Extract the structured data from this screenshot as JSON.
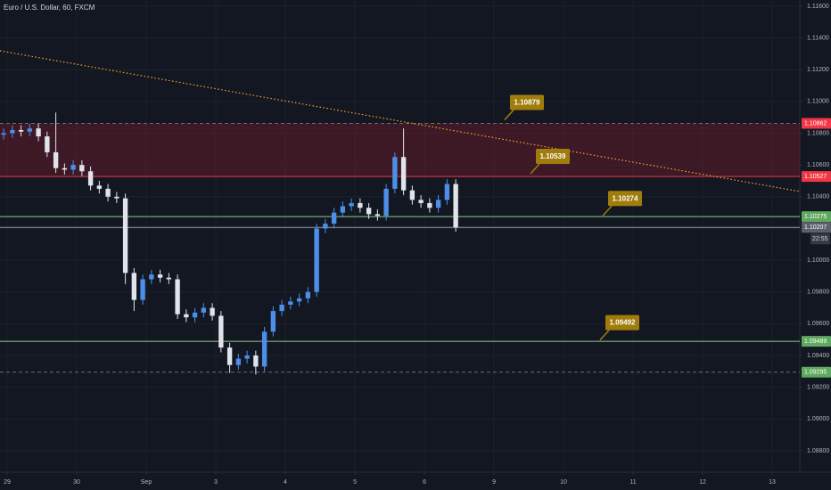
{
  "chart_data": {
    "type": "candlestick",
    "title": "Euro / U.S. Dollar, 60, FXCM",
    "x": [
      -0.05,
      0.075,
      0.2,
      0.325,
      0.45,
      0.575,
      0.7,
      0.825,
      0.95,
      1.075,
      1.2,
      1.325,
      1.45,
      1.575,
      1.7,
      1.825,
      1.95,
      2.075,
      2.2,
      2.325,
      2.45,
      2.575,
      2.7,
      2.825,
      2.95,
      3.075,
      3.2,
      3.325,
      3.45,
      3.575,
      3.7,
      3.825,
      3.95,
      4.075,
      4.2,
      4.325,
      4.45,
      4.575,
      4.7,
      4.825,
      4.95,
      5.075,
      5.2,
      5.325,
      5.45,
      5.575,
      5.7,
      5.825,
      5.95,
      6.075,
      6.2,
      6.325,
      6.45
    ],
    "open": [
      1.1079,
      1.108,
      1.1082,
      1.1081,
      1.1083,
      1.1078,
      1.1068,
      1.1058,
      1.1057,
      1.106,
      1.1056,
      1.1047,
      1.1045,
      1.104,
      1.1039,
      1.0992,
      1.0975,
      1.0988,
      1.0991,
      1.0989,
      1.0988,
      1.0966,
      1.0964,
      1.0967,
      1.097,
      1.0965,
      1.0945,
      1.0934,
      1.0938,
      1.094,
      1.0933,
      1.0955,
      1.0968,
      1.0972,
      1.0974,
      1.0976,
      1.098,
      1.102,
      1.1023,
      1.103,
      1.1034,
      1.1036,
      1.1033,
      1.1029,
      1.1028,
      1.1045,
      1.1065,
      1.1044,
      1.1038,
      1.1036,
      1.1033,
      1.1038,
      1.1048
    ],
    "high": [
      1.1083,
      1.1085,
      1.1085,
      1.1086,
      1.1086,
      1.1081,
      1.1093,
      1.1061,
      1.1063,
      1.1063,
      1.1059,
      1.105,
      1.1048,
      1.1043,
      1.1042,
      1.0995,
      1.0991,
      1.0994,
      1.0994,
      1.0992,
      1.0991,
      1.0969,
      1.097,
      1.0973,
      1.0973,
      1.0968,
      1.0948,
      1.0941,
      1.0943,
      1.0943,
      1.0958,
      1.0971,
      1.0975,
      1.0977,
      1.0979,
      1.0983,
      1.1023,
      1.1026,
      1.1033,
      1.1037,
      1.1039,
      1.1039,
      1.1036,
      1.1032,
      1.1048,
      1.1068,
      1.1083,
      1.1047,
      1.1041,
      1.1039,
      1.1041,
      1.1051,
      1.1051
    ],
    "low": [
      1.1076,
      1.1077,
      1.1078,
      1.1078,
      1.1075,
      1.1065,
      1.1055,
      1.1054,
      1.1054,
      1.1053,
      1.1044,
      1.1042,
      1.1037,
      1.1036,
      1.0985,
      1.0968,
      1.0972,
      1.0985,
      1.0986,
      1.0985,
      1.0963,
      1.0961,
      1.0961,
      1.0964,
      1.0962,
      1.0942,
      1.0929,
      1.0931,
      1.0935,
      1.0928,
      1.093,
      1.0952,
      1.0965,
      1.0969,
      1.0971,
      1.0973,
      1.0977,
      1.1017,
      1.102,
      1.1027,
      1.1031,
      1.103,
      1.1026,
      1.1025,
      1.1025,
      1.1042,
      1.1041,
      1.1035,
      1.1033,
      1.103,
      1.103,
      1.1035,
      1.1018
    ],
    "close": [
      1.108,
      1.1082,
      1.1081,
      1.1083,
      1.1078,
      1.1068,
      1.1058,
      1.1057,
      1.106,
      1.1056,
      1.1047,
      1.1045,
      1.104,
      1.1039,
      1.0992,
      1.0975,
      1.0988,
      1.0991,
      1.0989,
      1.0988,
      1.0966,
      1.0964,
      1.0967,
      1.097,
      1.0965,
      1.0945,
      1.0934,
      1.0938,
      1.094,
      1.0933,
      1.0955,
      1.0968,
      1.0972,
      1.0974,
      1.0976,
      1.098,
      1.102,
      1.1023,
      1.103,
      1.1034,
      1.1036,
      1.1033,
      1.1029,
      1.1028,
      1.1045,
      1.1065,
      1.1044,
      1.1038,
      1.1036,
      1.1033,
      1.1038,
      1.1048,
      1.10207
    ],
    "up_color": "#4c8fea",
    "down_color": "#e0e3eb",
    "xlim": [
      -0.1026,
      11.397
    ],
    "ylim": [
      1.08665,
      1.11639
    ],
    "xticks": [
      {
        "value": 0,
        "label": "29"
      },
      {
        "value": 1,
        "label": "30"
      },
      {
        "value": 2,
        "label": "Sep"
      },
      3,
      4,
      5,
      6,
      {
        "value": 7,
        "label": "9"
      },
      {
        "value": 8,
        "label": "10"
      },
      {
        "value": 9,
        "label": "11"
      },
      {
        "value": 10,
        "label": "12"
      },
      {
        "value": 11,
        "label": "13"
      }
    ],
    "yticks": [
      {
        "value": 1.116,
        "label": "1.11600"
      },
      {
        "value": 1.114,
        "label": "1.11400"
      },
      {
        "value": 1.112,
        "label": "1.11200"
      },
      {
        "value": 1.11,
        "label": "1.11000"
      },
      {
        "value": 1.108,
        "label": "1.10800"
      },
      {
        "value": 1.106,
        "label": "1.10600"
      },
      {
        "value": 1.104,
        "label": "1.10400"
      },
      {
        "value": 1.102,
        "label": "1.10200"
      },
      {
        "value": 1.1,
        "label": "1.10000"
      },
      {
        "value": 1.098,
        "label": "1.09800"
      },
      {
        "value": 1.096,
        "label": "1.09600"
      },
      {
        "value": 1.094,
        "label": "1.09400"
      },
      {
        "value": 1.092,
        "label": "1.09200"
      },
      {
        "value": 1.09,
        "label": "1.09000"
      },
      {
        "value": 1.088,
        "label": "1.08800"
      }
    ],
    "grid": true,
    "zone": {
      "from": 1.10527,
      "to": 1.10862,
      "color": "rgba(140,30,45,0.35)"
    },
    "levels": [
      {
        "value": 1.10862,
        "label": "1.10862",
        "color": "#f23645",
        "line_color": "#6a6d78",
        "style": "dashed"
      },
      {
        "value": 1.10527,
        "label": "1.10527",
        "color": "#f23645",
        "line_color": "#f23645",
        "style": "solid"
      },
      {
        "value": 1.10275,
        "label": "1.10275",
        "color": "#5fa85f",
        "line_color": "#8fc98f",
        "style": "solid"
      },
      {
        "value": 1.10207,
        "label": "1.10207",
        "color": "#5d606b",
        "line_color": "#9598a1",
        "style": "solid"
      },
      {
        "value": 1.09489,
        "label": "1.09489",
        "color": "#5fa85f",
        "line_color": "#8fc98f",
        "style": "solid"
      },
      {
        "value": 1.09295,
        "label": "1.09295",
        "color": "#5fa85f",
        "line_color": "#6a6d78",
        "style": "dashed"
      }
    ],
    "countdown": "22:55",
    "trendline": {
      "x": [
        -0.1026,
        11.397
      ],
      "y": [
        1.11319,
        1.10433
      ],
      "color": "#f5a623"
    },
    "callouts": [
      {
        "value": 1.10879,
        "label": "1.10879"
      },
      {
        "value": 1.10539,
        "label": "1.10539"
      },
      {
        "value": 1.10274,
        "label": "1.10274"
      },
      {
        "value": 1.09492,
        "label": "1.09492"
      }
    ],
    "callout_color": "#a07c0c"
  }
}
